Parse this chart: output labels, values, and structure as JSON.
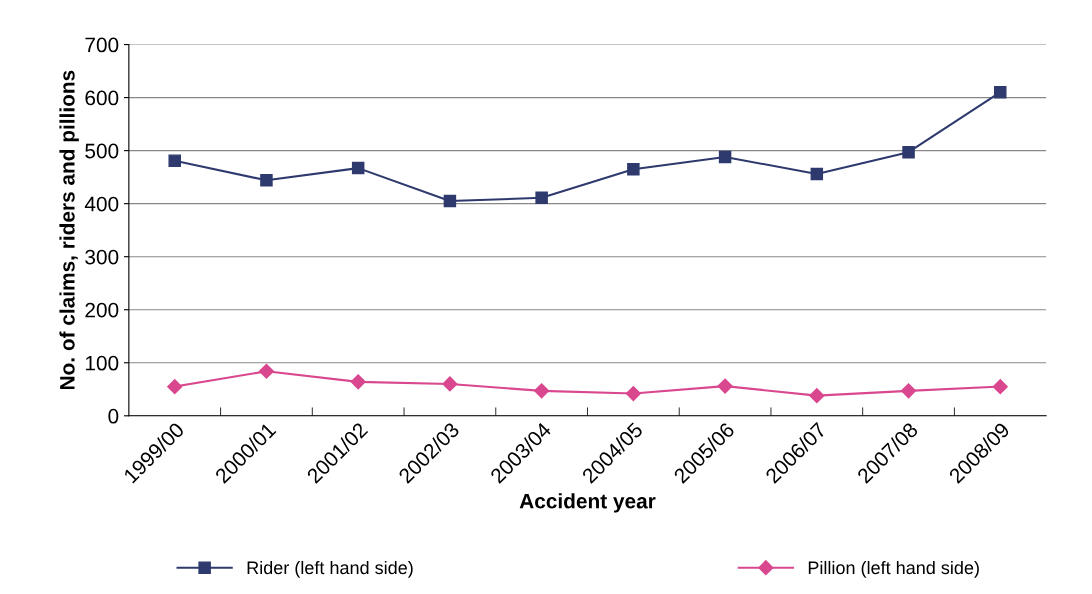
{
  "chart_data": {
    "type": "line",
    "xlabel": "Accident year",
    "ylabel": "No. of claims, riders and pillions",
    "categories": [
      "1999/00",
      "2000/01",
      "2001/02",
      "2002/03",
      "2003/04",
      "2004/05",
      "2005/06",
      "2006/07",
      "2007/08",
      "2008/09"
    ],
    "series": [
      {
        "name": "Rider (left hand side)",
        "color": "#2e3a6e",
        "marker": "square",
        "values": [
          481,
          444,
          467,
          405,
          411,
          465,
          488,
          456,
          497,
          610
        ]
      },
      {
        "name": "Pillion (left hand side)",
        "color": "#d9478f",
        "marker": "diamond",
        "values": [
          55,
          84,
          64,
          60,
          47,
          42,
          56,
          38,
          47,
          55
        ]
      }
    ],
    "ylim": [
      0,
      700
    ],
    "yticks": [
      0,
      100,
      200,
      300,
      400,
      500,
      600,
      700
    ],
    "grid": "y",
    "legend": "bottom"
  }
}
